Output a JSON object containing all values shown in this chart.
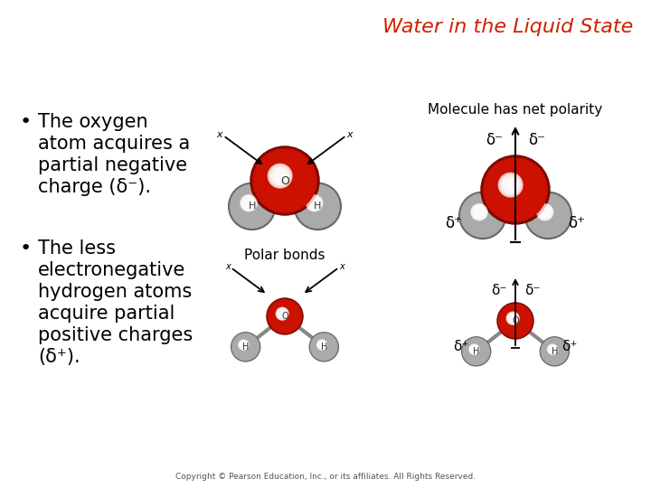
{
  "title": "Water in the Liquid State",
  "title_color": "#CC2200",
  "title_fontsize": 16,
  "background_color": "#FFFFFF",
  "bullet1_lines": [
    "The oxygen",
    "atom acquires a",
    "partial negative",
    "charge (δ⁻)."
  ],
  "bullet2_lines": [
    "The less",
    "electronegative",
    "hydrogen atoms",
    "acquire partial",
    "positive charges",
    "(δ⁺)."
  ],
  "label_polar_bonds": "Polar bonds",
  "label_net_polarity": "Molecule has net polarity",
  "copyright": "Copyright © Pearson Education, Inc., or its affiliates. All Rights Reserved.",
  "delta_minus": "δ⁻",
  "delta_plus": "δ⁺",
  "oxygen_red": "#CC1100",
  "hydrogen_gray": "#AAAAAA",
  "bullet_fontsize": 15,
  "label_fontsize": 11
}
